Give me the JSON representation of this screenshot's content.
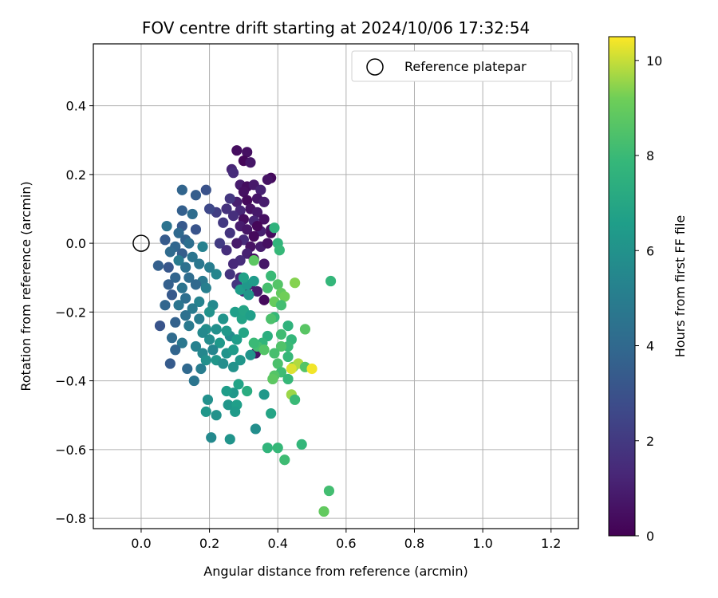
{
  "chart_data": {
    "type": "scatter",
    "title": "FOV centre drift starting at 2024/10/06 17:32:54",
    "xlabel": "Angular distance from reference (arcmin)",
    "ylabel": "Rotation from reference (arcmin)",
    "xlim": [
      -0.14,
      1.28
    ],
    "ylim": [
      -0.83,
      0.58
    ],
    "xticks": [
      0.0,
      0.2,
      0.4,
      0.6,
      0.8,
      1.0,
      1.2
    ],
    "xtick_labels": [
      "0.0",
      "0.2",
      "0.4",
      "0.6",
      "0.8",
      "1.0",
      "1.2"
    ],
    "yticks": [
      0.4,
      0.2,
      0.0,
      -0.2,
      -0.4,
      -0.6,
      -0.8
    ],
    "ytick_labels": [
      "0.4",
      "0.2",
      "0.0",
      "−0.2",
      "−0.4",
      "−0.6",
      "−0.8"
    ],
    "grid": true,
    "legend": {
      "placement": "top-right",
      "entries": [
        "Reference platepar"
      ]
    },
    "reference_point": {
      "x": 0.0,
      "y": 0.0,
      "label": "Reference platepar"
    },
    "colorbar": {
      "label": "Hours from first FF file",
      "colormap": "viridis",
      "range": [
        0,
        10.5
      ],
      "ticks": [
        0,
        2,
        4,
        6,
        8,
        10
      ],
      "tick_labels": [
        "0",
        "2",
        "4",
        "6",
        "8",
        "10"
      ]
    },
    "points": [
      {
        "x": 0.28,
        "y": 0.27,
        "h": 0.4
      },
      {
        "x": 0.31,
        "y": 0.265,
        "h": 0.5
      },
      {
        "x": 0.3,
        "y": 0.24,
        "h": 0.2
      },
      {
        "x": 0.32,
        "y": 0.235,
        "h": 0.7
      },
      {
        "x": 0.265,
        "y": 0.215,
        "h": 1.2
      },
      {
        "x": 0.27,
        "y": 0.205,
        "h": 1.5
      },
      {
        "x": 0.38,
        "y": 0.19,
        "h": 0.3
      },
      {
        "x": 0.37,
        "y": 0.185,
        "h": 0.6
      },
      {
        "x": 0.29,
        "y": 0.17,
        "h": 0.9
      },
      {
        "x": 0.31,
        "y": 0.165,
        "h": 0.4
      },
      {
        "x": 0.33,
        "y": 0.17,
        "h": 0.8
      },
      {
        "x": 0.35,
        "y": 0.155,
        "h": 1.1
      },
      {
        "x": 0.3,
        "y": 0.15,
        "h": 0.5
      },
      {
        "x": 0.34,
        "y": 0.13,
        "h": 0.7
      },
      {
        "x": 0.31,
        "y": 0.125,
        "h": 0.3
      },
      {
        "x": 0.28,
        "y": 0.12,
        "h": 1.0
      },
      {
        "x": 0.36,
        "y": 0.12,
        "h": 0.9
      },
      {
        "x": 0.32,
        "y": 0.1,
        "h": 0.6
      },
      {
        "x": 0.29,
        "y": 0.095,
        "h": 1.3
      },
      {
        "x": 0.34,
        "y": 0.09,
        "h": 0.8
      },
      {
        "x": 0.27,
        "y": 0.08,
        "h": 1.6
      },
      {
        "x": 0.3,
        "y": 0.07,
        "h": 0.4
      },
      {
        "x": 0.33,
        "y": 0.065,
        "h": 1.2
      },
      {
        "x": 0.36,
        "y": 0.07,
        "h": 0.5
      },
      {
        "x": 0.29,
        "y": 0.05,
        "h": 0.9
      },
      {
        "x": 0.31,
        "y": 0.04,
        "h": 0.7
      },
      {
        "x": 0.35,
        "y": 0.035,
        "h": 1.0
      },
      {
        "x": 0.33,
        "y": 0.02,
        "h": 0.3
      },
      {
        "x": 0.3,
        "y": 0.01,
        "h": 1.4
      },
      {
        "x": 0.28,
        "y": 0.0,
        "h": 0.8
      },
      {
        "x": 0.32,
        "y": -0.01,
        "h": 0.6
      },
      {
        "x": 0.35,
        "y": -0.01,
        "h": 0.9
      },
      {
        "x": 0.31,
        "y": -0.03,
        "h": 1.1
      },
      {
        "x": 0.33,
        "y": -0.045,
        "h": 0.4
      },
      {
        "x": 0.29,
        "y": -0.05,
        "h": 1.5
      },
      {
        "x": 0.36,
        "y": -0.06,
        "h": 0.7
      },
      {
        "x": 0.34,
        "y": 0.05,
        "h": 0.2
      },
      {
        "x": 0.37,
        "y": 0.0,
        "h": 0.5
      },
      {
        "x": 0.38,
        "y": 0.03,
        "h": 0.3
      },
      {
        "x": 0.26,
        "y": 0.03,
        "h": 1.8
      },
      {
        "x": 0.24,
        "y": 0.06,
        "h": 2.0
      },
      {
        "x": 0.22,
        "y": 0.09,
        "h": 2.2
      },
      {
        "x": 0.25,
        "y": 0.1,
        "h": 1.7
      },
      {
        "x": 0.26,
        "y": 0.13,
        "h": 1.9
      },
      {
        "x": 0.23,
        "y": 0.0,
        "h": 2.1
      },
      {
        "x": 0.25,
        "y": -0.02,
        "h": 1.6
      },
      {
        "x": 0.27,
        "y": -0.06,
        "h": 1.4
      },
      {
        "x": 0.26,
        "y": -0.09,
        "h": 1.8
      },
      {
        "x": 0.29,
        "y": -0.1,
        "h": 1.2
      },
      {
        "x": 0.32,
        "y": -0.12,
        "h": 1.0
      },
      {
        "x": 0.34,
        "y": -0.14,
        "h": 0.9
      },
      {
        "x": 0.36,
        "y": -0.165,
        "h": 0.3
      },
      {
        "x": 0.3,
        "y": -0.14,
        "h": 1.3
      },
      {
        "x": 0.28,
        "y": -0.12,
        "h": 1.9
      },
      {
        "x": 0.335,
        "y": -0.32,
        "h": 0.6
      },
      {
        "x": 0.38,
        "y": 0.04,
        "h": 0.4
      },
      {
        "x": 0.12,
        "y": 0.155,
        "h": 3.8
      },
      {
        "x": 0.19,
        "y": 0.155,
        "h": 3.0
      },
      {
        "x": 0.16,
        "y": 0.14,
        "h": 3.5
      },
      {
        "x": 0.2,
        "y": 0.1,
        "h": 2.6
      },
      {
        "x": 0.12,
        "y": 0.095,
        "h": 3.6
      },
      {
        "x": 0.15,
        "y": 0.085,
        "h": 4.2
      },
      {
        "x": 0.075,
        "y": 0.05,
        "h": 4.5
      },
      {
        "x": 0.12,
        "y": 0.05,
        "h": 3.3
      },
      {
        "x": 0.16,
        "y": 0.04,
        "h": 3.1
      },
      {
        "x": 0.11,
        "y": 0.03,
        "h": 4.0
      },
      {
        "x": 0.13,
        "y": 0.01,
        "h": 3.7
      },
      {
        "x": 0.07,
        "y": 0.01,
        "h": 3.4
      },
      {
        "x": 0.14,
        "y": 0.0,
        "h": 4.3
      },
      {
        "x": 0.1,
        "y": -0.01,
        "h": 3.9
      },
      {
        "x": 0.18,
        "y": -0.01,
        "h": 5.2
      },
      {
        "x": 0.085,
        "y": -0.025,
        "h": 4.1
      },
      {
        "x": 0.12,
        "y": -0.03,
        "h": 3.5
      },
      {
        "x": 0.15,
        "y": -0.04,
        "h": 4.6
      },
      {
        "x": 0.11,
        "y": -0.05,
        "h": 4.9
      },
      {
        "x": 0.05,
        "y": -0.065,
        "h": 3.6
      },
      {
        "x": 0.08,
        "y": -0.07,
        "h": 3.2
      },
      {
        "x": 0.13,
        "y": -0.07,
        "h": 4.4
      },
      {
        "x": 0.17,
        "y": -0.06,
        "h": 4.7
      },
      {
        "x": 0.2,
        "y": -0.07,
        "h": 5.0
      },
      {
        "x": 0.22,
        "y": -0.09,
        "h": 5.4
      },
      {
        "x": 0.1,
        "y": -0.1,
        "h": 3.8
      },
      {
        "x": 0.14,
        "y": -0.1,
        "h": 4.2
      },
      {
        "x": 0.18,
        "y": -0.11,
        "h": 4.8
      },
      {
        "x": 0.08,
        "y": -0.12,
        "h": 3.6
      },
      {
        "x": 0.12,
        "y": -0.13,
        "h": 4.5
      },
      {
        "x": 0.16,
        "y": -0.12,
        "h": 4.0
      },
      {
        "x": 0.19,
        "y": -0.13,
        "h": 5.1
      },
      {
        "x": 0.09,
        "y": -0.15,
        "h": 3.3
      },
      {
        "x": 0.13,
        "y": -0.16,
        "h": 4.3
      },
      {
        "x": 0.17,
        "y": -0.17,
        "h": 5.3
      },
      {
        "x": 0.11,
        "y": -0.18,
        "h": 4.6
      },
      {
        "x": 0.15,
        "y": -0.19,
        "h": 4.9
      },
      {
        "x": 0.21,
        "y": -0.18,
        "h": 5.6
      },
      {
        "x": 0.07,
        "y": -0.18,
        "h": 3.9
      },
      {
        "x": 0.13,
        "y": -0.21,
        "h": 4.4
      },
      {
        "x": 0.17,
        "y": -0.22,
        "h": 5.0
      },
      {
        "x": 0.1,
        "y": -0.23,
        "h": 3.7
      },
      {
        "x": 0.14,
        "y": -0.24,
        "h": 4.8
      },
      {
        "x": 0.055,
        "y": -0.24,
        "h": 3.1
      },
      {
        "x": 0.09,
        "y": -0.275,
        "h": 4.1
      },
      {
        "x": 0.12,
        "y": -0.29,
        "h": 4.7
      },
      {
        "x": 0.16,
        "y": -0.3,
        "h": 5.2
      },
      {
        "x": 0.1,
        "y": -0.31,
        "h": 3.8
      },
      {
        "x": 0.085,
        "y": -0.35,
        "h": 3.4
      },
      {
        "x": 0.135,
        "y": -0.365,
        "h": 4.0
      },
      {
        "x": 0.155,
        "y": -0.4,
        "h": 4.6
      },
      {
        "x": 0.18,
        "y": -0.32,
        "h": 5.5
      },
      {
        "x": 0.175,
        "y": -0.365,
        "h": 5.0
      },
      {
        "x": 0.2,
        "y": -0.28,
        "h": 5.7
      },
      {
        "x": 0.22,
        "y": -0.25,
        "h": 5.9
      },
      {
        "x": 0.24,
        "y": -0.22,
        "h": 6.1
      },
      {
        "x": 0.19,
        "y": -0.25,
        "h": 5.8
      },
      {
        "x": 0.2,
        "y": -0.2,
        "h": 6.0
      },
      {
        "x": 0.18,
        "y": -0.26,
        "h": 5.6
      },
      {
        "x": 0.23,
        "y": -0.29,
        "h": 6.3
      },
      {
        "x": 0.21,
        "y": -0.31,
        "h": 5.4
      },
      {
        "x": 0.22,
        "y": -0.34,
        "h": 6.2
      },
      {
        "x": 0.24,
        "y": -0.35,
        "h": 5.8
      },
      {
        "x": 0.19,
        "y": -0.34,
        "h": 5.9
      },
      {
        "x": 0.25,
        "y": -0.32,
        "h": 6.1
      },
      {
        "x": 0.27,
        "y": -0.31,
        "h": 6.4
      },
      {
        "x": 0.26,
        "y": -0.27,
        "h": 5.7
      },
      {
        "x": 0.28,
        "y": -0.28,
        "h": 6.5
      },
      {
        "x": 0.29,
        "y": -0.34,
        "h": 6.2
      },
      {
        "x": 0.27,
        "y": -0.36,
        "h": 6.0
      },
      {
        "x": 0.25,
        "y": -0.255,
        "h": 6.3
      },
      {
        "x": 0.275,
        "y": -0.2,
        "h": 6.6
      },
      {
        "x": 0.295,
        "y": -0.22,
        "h": 6.8
      },
      {
        "x": 0.3,
        "y": -0.195,
        "h": 6.9
      },
      {
        "x": 0.29,
        "y": -0.135,
        "h": 6.5
      },
      {
        "x": 0.31,
        "y": -0.12,
        "h": 6.3
      },
      {
        "x": 0.3,
        "y": -0.1,
        "h": 6.7
      },
      {
        "x": 0.33,
        "y": -0.11,
        "h": 6.4
      },
      {
        "x": 0.315,
        "y": -0.15,
        "h": 6.2
      },
      {
        "x": 0.32,
        "y": -0.21,
        "h": 6.6
      },
      {
        "x": 0.3,
        "y": -0.26,
        "h": 6.9
      },
      {
        "x": 0.32,
        "y": -0.325,
        "h": 6.1
      },
      {
        "x": 0.27,
        "y": -0.435,
        "h": 6.3
      },
      {
        "x": 0.25,
        "y": -0.43,
        "h": 6.5
      },
      {
        "x": 0.255,
        "y": -0.47,
        "h": 6.2
      },
      {
        "x": 0.28,
        "y": -0.47,
        "h": 6.6
      },
      {
        "x": 0.275,
        "y": -0.49,
        "h": 6.4
      },
      {
        "x": 0.285,
        "y": -0.41,
        "h": 6.8
      },
      {
        "x": 0.195,
        "y": -0.455,
        "h": 5.9
      },
      {
        "x": 0.19,
        "y": -0.49,
        "h": 6.2
      },
      {
        "x": 0.22,
        "y": -0.5,
        "h": 6.0
      },
      {
        "x": 0.205,
        "y": -0.565,
        "h": 5.6
      },
      {
        "x": 0.26,
        "y": -0.57,
        "h": 6.1
      },
      {
        "x": 0.335,
        "y": -0.54,
        "h": 5.8
      },
      {
        "x": 0.36,
        "y": -0.44,
        "h": 6.3
      },
      {
        "x": 0.38,
        "y": -0.495,
        "h": 6.9
      },
      {
        "x": 0.31,
        "y": -0.43,
        "h": 7.3
      },
      {
        "x": 0.33,
        "y": -0.05,
        "h": 8.8
      },
      {
        "x": 0.39,
        "y": 0.045,
        "h": 7.6
      },
      {
        "x": 0.4,
        "y": 0.0,
        "h": 7.7
      },
      {
        "x": 0.405,
        "y": -0.02,
        "h": 7.9
      },
      {
        "x": 0.38,
        "y": -0.095,
        "h": 8.0
      },
      {
        "x": 0.37,
        "y": -0.13,
        "h": 8.3
      },
      {
        "x": 0.4,
        "y": -0.12,
        "h": 8.6
      },
      {
        "x": 0.41,
        "y": -0.145,
        "h": 8.9
      },
      {
        "x": 0.39,
        "y": -0.17,
        "h": 9.0
      },
      {
        "x": 0.42,
        "y": -0.155,
        "h": 9.2
      },
      {
        "x": 0.45,
        "y": -0.115,
        "h": 9.4
      },
      {
        "x": 0.555,
        "y": -0.11,
        "h": 7.8
      },
      {
        "x": 0.41,
        "y": -0.18,
        "h": 8.2
      },
      {
        "x": 0.39,
        "y": -0.215,
        "h": 7.9
      },
      {
        "x": 0.38,
        "y": -0.22,
        "h": 8.4
      },
      {
        "x": 0.43,
        "y": -0.24,
        "h": 7.6
      },
      {
        "x": 0.41,
        "y": -0.265,
        "h": 8.1
      },
      {
        "x": 0.44,
        "y": -0.28,
        "h": 7.8
      },
      {
        "x": 0.43,
        "y": -0.3,
        "h": 8.0
      },
      {
        "x": 0.41,
        "y": -0.3,
        "h": 8.5
      },
      {
        "x": 0.48,
        "y": -0.25,
        "h": 8.7
      },
      {
        "x": 0.37,
        "y": -0.27,
        "h": 7.4
      },
      {
        "x": 0.355,
        "y": -0.29,
        "h": 7.7
      },
      {
        "x": 0.34,
        "y": -0.3,
        "h": 8.2
      },
      {
        "x": 0.36,
        "y": -0.31,
        "h": 8.6
      },
      {
        "x": 0.33,
        "y": -0.29,
        "h": 8.0
      },
      {
        "x": 0.39,
        "y": -0.32,
        "h": 8.3
      },
      {
        "x": 0.43,
        "y": -0.33,
        "h": 7.9
      },
      {
        "x": 0.4,
        "y": -0.35,
        "h": 8.4
      },
      {
        "x": 0.41,
        "y": -0.375,
        "h": 8.1
      },
      {
        "x": 0.39,
        "y": -0.385,
        "h": 8.6
      },
      {
        "x": 0.385,
        "y": -0.395,
        "h": 8.8
      },
      {
        "x": 0.43,
        "y": -0.395,
        "h": 7.9
      },
      {
        "x": 0.445,
        "y": -0.36,
        "h": 9.3
      },
      {
        "x": 0.46,
        "y": -0.35,
        "h": 9.8
      },
      {
        "x": 0.44,
        "y": -0.365,
        "h": 10.2
      },
      {
        "x": 0.48,
        "y": -0.36,
        "h": 8.6
      },
      {
        "x": 0.5,
        "y": -0.365,
        "h": 10.4
      },
      {
        "x": 0.44,
        "y": -0.44,
        "h": 9.6
      },
      {
        "x": 0.45,
        "y": -0.455,
        "h": 8.0
      },
      {
        "x": 0.37,
        "y": -0.595,
        "h": 7.7
      },
      {
        "x": 0.4,
        "y": -0.595,
        "h": 7.9
      },
      {
        "x": 0.47,
        "y": -0.585,
        "h": 7.8
      },
      {
        "x": 0.42,
        "y": -0.63,
        "h": 8.1
      },
      {
        "x": 0.55,
        "y": -0.72,
        "h": 8.2
      },
      {
        "x": 0.535,
        "y": -0.78,
        "h": 8.9
      }
    ]
  }
}
